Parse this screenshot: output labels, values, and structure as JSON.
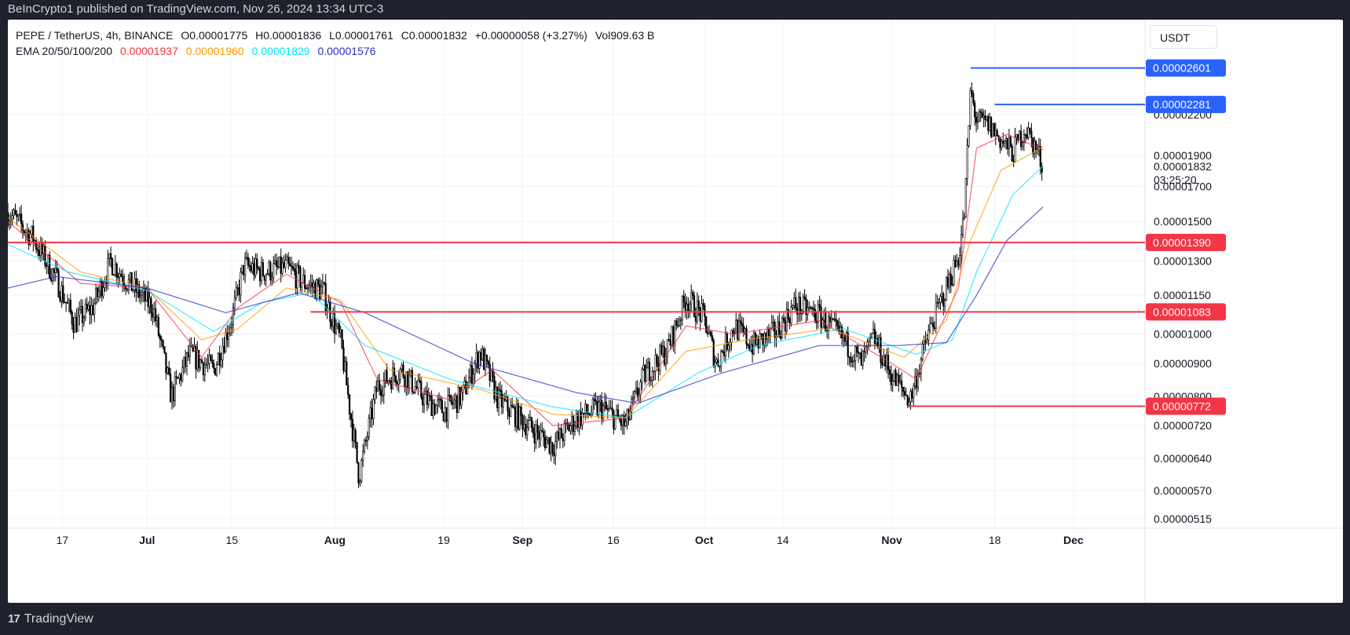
{
  "header": {
    "published_text": "BeInCrypto1 published on TradingView.com, Nov 26, 2024 13:34 UTC-3"
  },
  "footer": {
    "brand": "TradingView",
    "logo_icon": "tradingview-logo-icon"
  },
  "currency_button": "USDT",
  "legend": {
    "symbol": "PEPE / TetherUS, 4h, BINANCE",
    "open": "O0.00001775",
    "high": "H0.00001836",
    "low": "L0.00001761",
    "close": "C0.00001832",
    "change": "+0.00000058 (+3.27%)",
    "volume": "Vol909.63 B",
    "ema_label": "EMA 20/50/100/200",
    "ema_values": [
      {
        "value": "0.00001937",
        "color": "#f23645"
      },
      {
        "value": "0.00001960",
        "color": "#ff9800"
      },
      {
        "value": "0.00001829",
        "color": "#00e5ff"
      },
      {
        "value": "0.00001576",
        "color": "#2a2ec8"
      }
    ]
  },
  "chart_data": {
    "type": "candlestick",
    "y_scale": "log",
    "x_ticks": [
      "17",
      "Jul",
      "15",
      "Aug",
      "19",
      "Sep",
      "16",
      "Oct",
      "14",
      "Nov",
      "18",
      "Dec"
    ],
    "y_ticks": [
      "0.00002200",
      "0.00001900",
      "0.00001700",
      "0.00001500",
      "0.00001300",
      "0.00001150",
      "0.00001000",
      "0.00000900",
      "0.00000800",
      "0.00000720",
      "0.00000640",
      "0.00000570",
      "0.00000515"
    ],
    "y_tick_values": [
      2.2e-05,
      1.9e-05,
      1.7e-05,
      1.5e-05,
      1.3e-05,
      1.15e-05,
      1e-05,
      9e-06,
      8e-06,
      7.2e-06,
      6.4e-06,
      5.7e-06,
      5.15e-06
    ],
    "last_price": "0.00001832",
    "countdown": "03:25:20",
    "price_path": [
      [
        "2024-06-08",
        1.55e-05
      ],
      [
        "2024-06-12",
        1.42e-05
      ],
      [
        "2024-06-16",
        1.22e-05
      ],
      [
        "2024-06-19",
        1.04e-05
      ],
      [
        "2024-06-22",
        1.1e-05
      ],
      [
        "2024-06-25",
        1.3e-05
      ],
      [
        "2024-06-28",
        1.2e-05
      ],
      [
        "2024-07-02",
        1.1e-05
      ],
      [
        "2024-07-05",
        8e-06
      ],
      [
        "2024-07-08",
        9.3e-06
      ],
      [
        "2024-07-12",
        8.8e-06
      ],
      [
        "2024-07-15",
        1.06e-05
      ],
      [
        "2024-07-17",
        1.28e-05
      ],
      [
        "2024-07-20",
        1.25e-05
      ],
      [
        "2024-07-24",
        1.27e-05
      ],
      [
        "2024-07-27",
        1.2e-05
      ],
      [
        "2024-07-30",
        1.17e-05
      ],
      [
        "2024-08-02",
        9.7e-06
      ],
      [
        "2024-08-05",
        6e-06
      ],
      [
        "2024-08-08",
        8.3e-06
      ],
      [
        "2024-08-12",
        8.8e-06
      ],
      [
        "2024-08-16",
        7.9e-06
      ],
      [
        "2024-08-19",
        7.6e-06
      ],
      [
        "2024-08-22",
        8e-06
      ],
      [
        "2024-08-25",
        9.4e-06
      ],
      [
        "2024-08-28",
        7.9e-06
      ],
      [
        "2024-09-02",
        7.2e-06
      ],
      [
        "2024-09-06",
        6.7e-06
      ],
      [
        "2024-09-10",
        7.4e-06
      ],
      [
        "2024-09-14",
        7.7e-06
      ],
      [
        "2024-09-18",
        7.2e-06
      ],
      [
        "2024-09-21",
        8.6e-06
      ],
      [
        "2024-09-25",
        9.5e-06
      ],
      [
        "2024-09-28",
        1.14e-05
      ],
      [
        "2024-10-01",
        1.06e-05
      ],
      [
        "2024-10-03",
        9e-06
      ],
      [
        "2024-10-06",
        1.03e-05
      ],
      [
        "2024-10-09",
        9.6e-06
      ],
      [
        "2024-10-13",
        1.01e-05
      ],
      [
        "2024-10-16",
        1.11e-05
      ],
      [
        "2024-10-20",
        1.07e-05
      ],
      [
        "2024-10-24",
        9.8e-06
      ],
      [
        "2024-10-27",
        9e-06
      ],
      [
        "2024-10-29",
        9.9e-06
      ],
      [
        "2024-11-01",
        8.6e-06
      ],
      [
        "2024-11-04",
        7.9e-06
      ],
      [
        "2024-11-07",
        1e-05
      ],
      [
        "2024-11-10",
        1.18e-05
      ],
      [
        "2024-11-12",
        1.32e-05
      ],
      [
        "2024-11-13",
        1.55e-05
      ],
      [
        "2024-11-14",
        2.4e-05
      ],
      [
        "2024-11-15",
        2.15e-05
      ],
      [
        "2024-11-17",
        2.12e-05
      ],
      [
        "2024-11-19",
        2.01e-05
      ],
      [
        "2024-11-21",
        1.92e-05
      ],
      [
        "2024-11-23",
        2.1e-05
      ],
      [
        "2024-11-25",
        1.93e-05
      ],
      [
        "2024-11-26",
        1.83e-05
      ]
    ],
    "ema_series": [
      {
        "name": "EMA 20",
        "color": "#f23645",
        "points": [
          [
            "2024-06-08",
            1.5e-05
          ],
          [
            "2024-06-20",
            1.2e-05
          ],
          [
            "2024-07-01",
            1.18e-05
          ],
          [
            "2024-07-10",
            9.2e-06
          ],
          [
            "2024-07-16",
            1.1e-05
          ],
          [
            "2024-07-24",
            1.24e-05
          ],
          [
            "2024-08-02",
            1.12e-05
          ],
          [
            "2024-08-08",
            8.5e-06
          ],
          [
            "2024-08-20",
            7.9e-06
          ],
          [
            "2024-08-27",
            8.8e-06
          ],
          [
            "2024-09-06",
            7.2e-06
          ],
          [
            "2024-09-18",
            7.4e-06
          ],
          [
            "2024-09-28",
            1.03e-05
          ],
          [
            "2024-10-06",
            1e-05
          ],
          [
            "2024-10-20",
            1.05e-05
          ],
          [
            "2024-11-01",
            9e-06
          ],
          [
            "2024-11-05",
            8.5e-06
          ],
          [
            "2024-11-12",
            1.18e-05
          ],
          [
            "2024-11-15",
            1.95e-05
          ],
          [
            "2024-11-20",
            2.05e-05
          ],
          [
            "2024-11-26",
            1.94e-05
          ]
        ]
      },
      {
        "name": "EMA 50",
        "color": "#ff9800",
        "points": [
          [
            "2024-06-08",
            1.52e-05
          ],
          [
            "2024-06-20",
            1.25e-05
          ],
          [
            "2024-07-01",
            1.18e-05
          ],
          [
            "2024-07-10",
            9.8e-06
          ],
          [
            "2024-07-16",
            1.02e-05
          ],
          [
            "2024-07-24",
            1.18e-05
          ],
          [
            "2024-08-02",
            1.13e-05
          ],
          [
            "2024-08-10",
            8.8e-06
          ],
          [
            "2024-08-25",
            8.2e-06
          ],
          [
            "2024-09-06",
            7.5e-06
          ],
          [
            "2024-09-18",
            7.4e-06
          ],
          [
            "2024-09-28",
            9.4e-06
          ],
          [
            "2024-10-08",
            9.8e-06
          ],
          [
            "2024-10-22",
            1.02e-05
          ],
          [
            "2024-11-03",
            9.2e-06
          ],
          [
            "2024-11-10",
            1.05e-05
          ],
          [
            "2024-11-14",
            1.4e-05
          ],
          [
            "2024-11-19",
            1.8e-05
          ],
          [
            "2024-11-26",
            1.96e-05
          ]
        ]
      },
      {
        "name": "EMA 100",
        "color": "#00e5ff",
        "points": [
          [
            "2024-06-08",
            1.38e-05
          ],
          [
            "2024-06-18",
            1.25e-05
          ],
          [
            "2024-07-01",
            1.17e-05
          ],
          [
            "2024-07-12",
            1.01e-05
          ],
          [
            "2024-07-20",
            1.12e-05
          ],
          [
            "2024-07-28",
            1.16e-05
          ],
          [
            "2024-08-06",
            9.6e-06
          ],
          [
            "2024-08-20",
            8.5e-06
          ],
          [
            "2024-09-06",
            7.7e-06
          ],
          [
            "2024-09-18",
            7.4e-06
          ],
          [
            "2024-09-30",
            8.7e-06
          ],
          [
            "2024-10-10",
            9.6e-06
          ],
          [
            "2024-10-24",
            1.02e-05
          ],
          [
            "2024-11-05",
            9.3e-06
          ],
          [
            "2024-11-11",
            9.8e-06
          ],
          [
            "2024-11-15",
            1.25e-05
          ],
          [
            "2024-11-21",
            1.65e-05
          ],
          [
            "2024-11-26",
            1.83e-05
          ]
        ]
      },
      {
        "name": "EMA 200",
        "color": "#2a2ec8",
        "points": [
          [
            "2024-06-08",
            1.18e-05
          ],
          [
            "2024-06-16",
            1.23e-05
          ],
          [
            "2024-07-01",
            1.18e-05
          ],
          [
            "2024-07-14",
            1.08e-05
          ],
          [
            "2024-07-26",
            1.16e-05
          ],
          [
            "2024-08-06",
            1.08e-05
          ],
          [
            "2024-08-24",
            9e-06
          ],
          [
            "2024-09-10",
            8.1e-06
          ],
          [
            "2024-09-20",
            7.8e-06
          ],
          [
            "2024-10-04",
            8.7e-06
          ],
          [
            "2024-10-20",
            9.6e-06
          ],
          [
            "2024-11-02",
            9.6e-06
          ],
          [
            "2024-11-10",
            9.7e-06
          ],
          [
            "2024-11-15",
            1.15e-05
          ],
          [
            "2024-11-20",
            1.4e-05
          ],
          [
            "2024-11-26",
            1.58e-05
          ]
        ]
      }
    ],
    "levels": [
      {
        "label": "0.00002601",
        "value": 2.601e-05,
        "color": "#2962ff",
        "start": "2024-11-14"
      },
      {
        "label": "0.00002281",
        "value": 2.281e-05,
        "color": "#2962ff",
        "start": "2024-11-18"
      },
      {
        "label": "0.00001390",
        "value": 1.39e-05,
        "color": "#f23645",
        "start": "2024-06-08"
      },
      {
        "label": "0.00001083",
        "value": 1.083e-05,
        "color": "#f23645",
        "start": "2024-07-28"
      },
      {
        "label": "0.00000772",
        "value": 7.72e-06,
        "color": "#f23645",
        "start": "2024-11-04"
      }
    ]
  }
}
